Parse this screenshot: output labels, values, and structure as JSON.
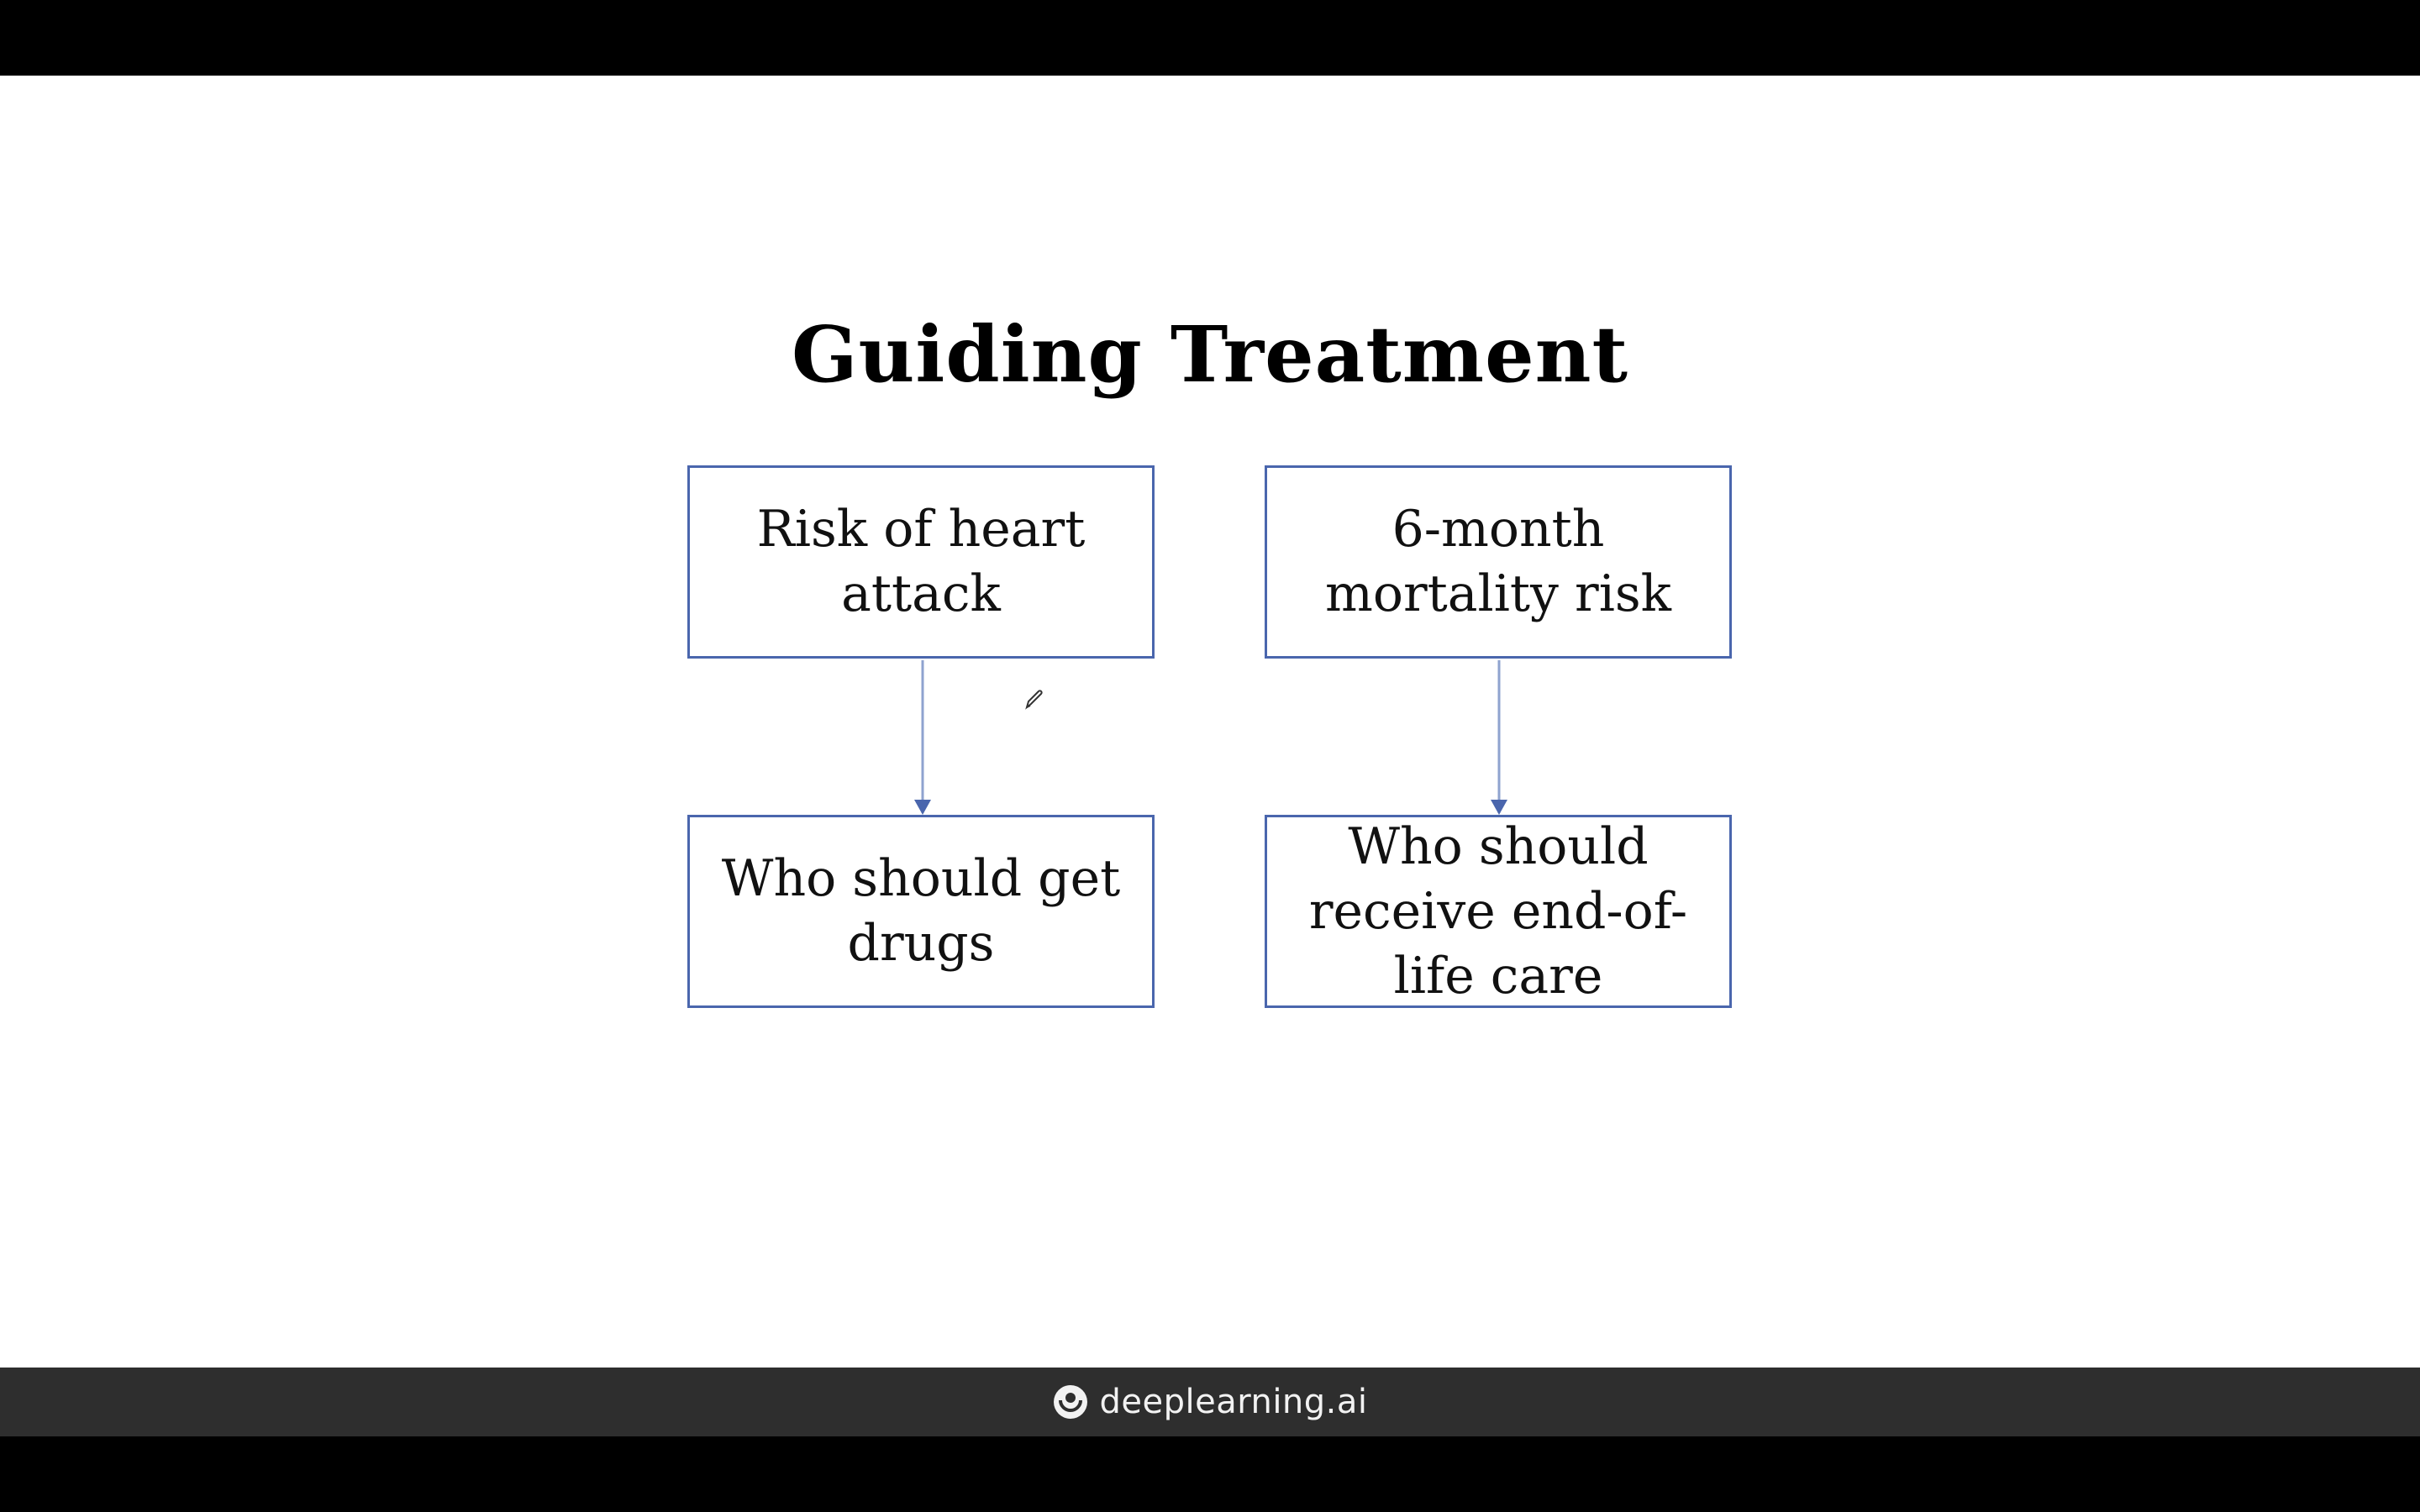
{
  "slide": {
    "title": "Guiding Treatment"
  },
  "diagram": {
    "nodes": {
      "top_left": "Risk of heart\nattack",
      "top_right": "6-month\nmortality risk",
      "bottom_left": "Who should get\ndrugs",
      "bottom_right": "Who should\nreceive end-of-\nlife care"
    },
    "edges": [
      {
        "from": "top_left",
        "to": "bottom_left"
      },
      {
        "from": "top_right",
        "to": "bottom_right"
      }
    ],
    "colors": {
      "box_border": "#4a66ad",
      "arrow": "#4a66ad"
    }
  },
  "footer": {
    "brand_name": "deeplearning.ai",
    "brand_icon": "deeplearning-logo-icon",
    "background": "#2e2e2e"
  }
}
